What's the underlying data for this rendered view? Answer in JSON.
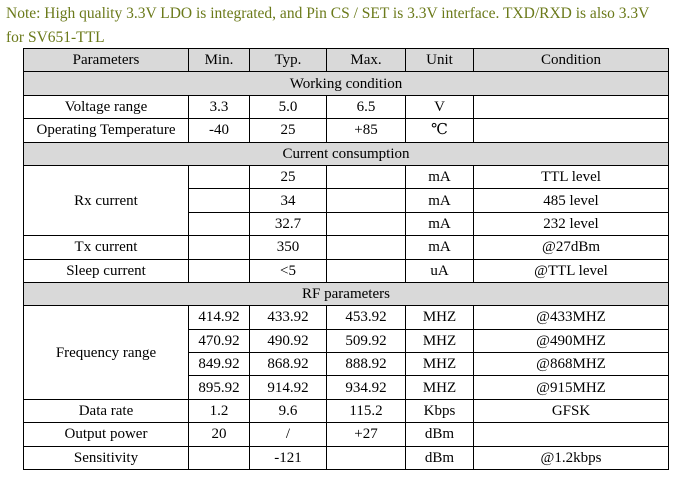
{
  "note": "Note: High quality 3.3V LDO is integrated, and Pin CS / SET is 3.3V interface. TXD/RXD is also 3.3V for SV651-TTL",
  "headers": [
    "Parameters",
    "Min.",
    "Typ.",
    "Max.",
    "Unit",
    "Condition"
  ],
  "sections": {
    "working": "Working condition",
    "current": "Current consumption",
    "rf": "RF parameters"
  },
  "rows": {
    "voltage": [
      "Voltage range",
      "3.3",
      "5.0",
      "6.5",
      "V",
      ""
    ],
    "temp": [
      "Operating Temperature",
      "-40",
      "25",
      "+85",
      "℃",
      ""
    ],
    "rx_label": "Rx current",
    "rx": [
      [
        "",
        "25",
        "",
        "mA",
        "TTL level"
      ],
      [
        "",
        "34",
        "",
        "mA",
        "485 level"
      ],
      [
        "",
        "32.7",
        "",
        "mA",
        "232 level"
      ]
    ],
    "tx": [
      "Tx current",
      "",
      "350",
      "",
      "mA",
      "@27dBm"
    ],
    "sleep": [
      "Sleep current",
      "",
      "<5",
      "",
      "uA",
      "@TTL level"
    ],
    "freq_label": "Frequency range",
    "freq": [
      [
        "414.92",
        "433.92",
        "453.92",
        "MHZ",
        "@433MHZ"
      ],
      [
        "470.92",
        "490.92",
        "509.92",
        "MHZ",
        "@490MHZ"
      ],
      [
        "849.92",
        "868.92",
        "888.92",
        "MHZ",
        "@868MHZ"
      ],
      [
        "895.92",
        "914.92",
        "934.92",
        "MHZ",
        "@915MHZ"
      ]
    ],
    "datarate": [
      "Data rate",
      "1.2",
      "9.6",
      "115.2",
      "Kbps",
      "GFSK"
    ],
    "outpower": [
      "Output power",
      "20",
      "/",
      "+27",
      "dBm",
      ""
    ],
    "sensitivity": [
      "Sensitivity",
      "",
      "-121",
      "",
      "dBm",
      "@1.2kbps"
    ]
  }
}
